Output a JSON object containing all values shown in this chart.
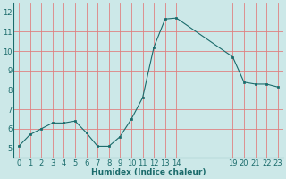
{
  "x": [
    0,
    1,
    2,
    3,
    4,
    5,
    6,
    7,
    8,
    9,
    10,
    11,
    12,
    13,
    14,
    19,
    20,
    21,
    22,
    23
  ],
  "y": [
    5.1,
    5.7,
    6.0,
    6.3,
    6.3,
    6.4,
    5.8,
    5.1,
    5.1,
    5.6,
    6.5,
    7.6,
    10.2,
    11.65,
    11.7,
    9.7,
    8.4,
    8.3,
    8.3,
    8.15
  ],
  "line_color": "#1a6b6b",
  "marker_color": "#1a6b6b",
  "bg_color": "#cce8e8",
  "grid_color": "#e08080",
  "xlabel": "Humidex (Indice chaleur)",
  "ylim": [
    4.5,
    12.5
  ],
  "xlim": [
    -0.5,
    23.5
  ],
  "yticks": [
    5,
    6,
    7,
    8,
    9,
    10,
    11,
    12
  ],
  "xtick_positions": [
    0,
    1,
    2,
    3,
    4,
    5,
    6,
    7,
    8,
    9,
    10,
    11,
    12,
    13,
    14,
    19,
    20,
    21,
    22,
    23
  ],
  "xtick_labels": [
    "0",
    "1",
    "2",
    "3",
    "4",
    "5",
    "6",
    "7",
    "8",
    "9",
    "10",
    "11",
    "12",
    "13",
    "14",
    "19",
    "20",
    "21",
    "22",
    "23"
  ],
  "tick_color": "#1a6b6b",
  "font_size": 6.0,
  "xlabel_size": 6.5,
  "linewidth": 0.8,
  "markersize": 2.0
}
